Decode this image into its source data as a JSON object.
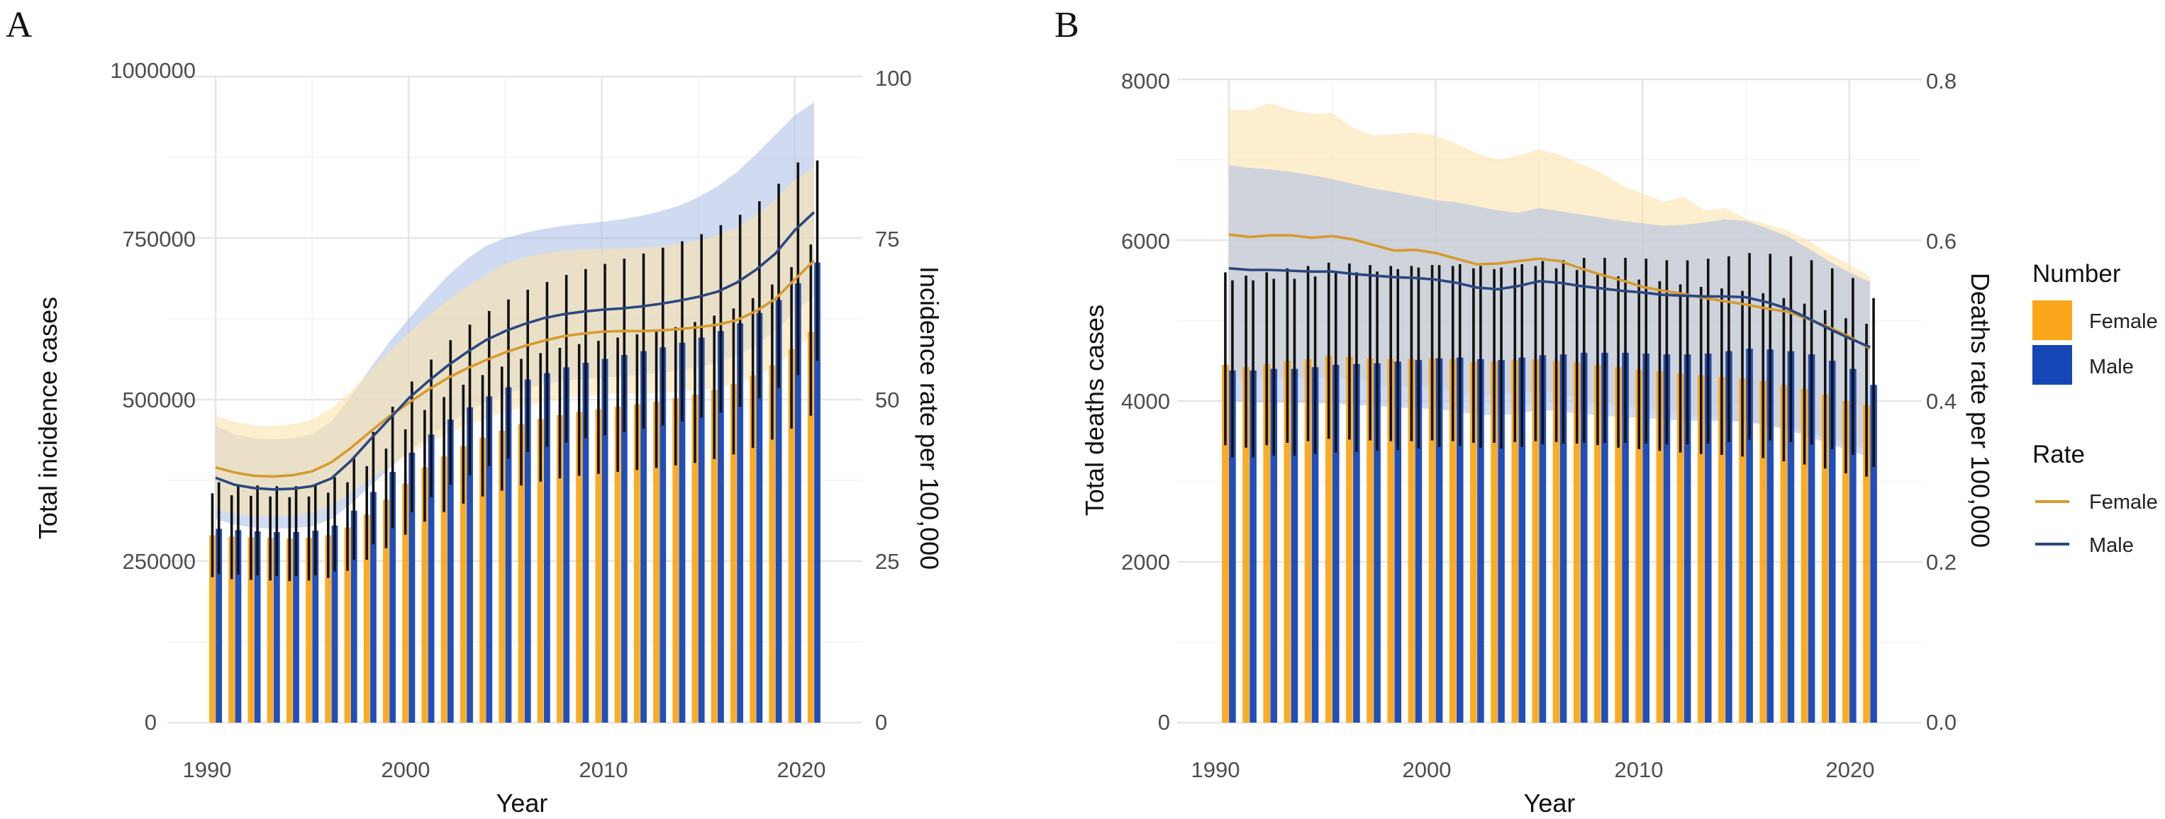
{
  "colors": {
    "female_bar": "#FAA61A",
    "male_bar": "#1546B5",
    "female_line": "#D69A2D",
    "male_line": "#2B4680",
    "female_ribbon": "#FBE3AE",
    "male_ribbon": "#A9BDE6",
    "errorbar": "#111111"
  },
  "legend": {
    "number_title": "Number",
    "rate_title": "Rate",
    "female": "Female",
    "male": "Male"
  },
  "chart_data": [
    {
      "panel": "A",
      "type": "bar",
      "xlabel": "Year",
      "ylabel": "Total incidence cases",
      "ylabel_right": "Incidence rate per 100,000",
      "xlim": [
        1987.5,
        2023.5
      ],
      "ylim": [
        0,
        1000000
      ],
      "ylim_right": [
        0,
        100
      ],
      "x_ticks": [
        "1990",
        "2000",
        "2010",
        "2020"
      ],
      "y_ticks": [
        "0",
        "250000",
        "500000",
        "750000",
        "1000000"
      ],
      "y_ticks_right": [
        "0",
        "25",
        "50",
        "75",
        "100"
      ],
      "years": [
        1990,
        1991,
        1992,
        1993,
        1994,
        1995,
        1996,
        1997,
        1998,
        1999,
        2000,
        2001,
        2002,
        2003,
        2004,
        2005,
        2006,
        2007,
        2008,
        2009,
        2010,
        2011,
        2012,
        2013,
        2014,
        2015,
        2016,
        2017,
        2018,
        2019,
        2020,
        2021
      ],
      "series": [
        {
          "name": "Female",
          "role": "count",
          "values": [
            290000,
            288000,
            287000,
            286000,
            285000,
            286000,
            290000,
            302000,
            322000,
            345000,
            370000,
            395000,
            412000,
            428000,
            441000,
            452000,
            462000,
            470000,
            476000,
            481000,
            485000,
            489000,
            493000,
            497000,
            502000,
            508000,
            515000,
            524000,
            537000,
            553000,
            578000,
            605000
          ],
          "lower": [
            225000,
            222000,
            221000,
            220000,
            219000,
            220000,
            224000,
            235000,
            252000,
            270000,
            291000,
            311000,
            326000,
            339000,
            350000,
            359000,
            367000,
            373000,
            378000,
            382000,
            385000,
            388000,
            391000,
            394000,
            398000,
            402000,
            408000,
            415000,
            425000,
            438000,
            455000,
            475000
          ],
          "upper": [
            355000,
            352000,
            351000,
            350000,
            349000,
            350000,
            356000,
            372000,
            397000,
            424000,
            454000,
            484000,
            504000,
            523000,
            538000,
            551000,
            563000,
            572000,
            580000,
            586000,
            591000,
            596000,
            601000,
            606000,
            612000,
            620000,
            630000,
            641000,
            657000,
            678000,
            705000,
            740000
          ]
        },
        {
          "name": "Male",
          "role": "count",
          "values": [
            300000,
            298000,
            296000,
            295000,
            295000,
            297000,
            305000,
            328000,
            357000,
            388000,
            418000,
            446000,
            469000,
            488000,
            505000,
            519000,
            531000,
            541000,
            550000,
            557000,
            563000,
            569000,
            575000,
            581000,
            588000,
            596000,
            606000,
            618000,
            634000,
            654000,
            680000,
            712000
          ],
          "lower": [
            230000,
            229000,
            228000,
            227000,
            227000,
            228000,
            234000,
            252000,
            276000,
            301000,
            326000,
            349000,
            368000,
            383000,
            397000,
            409000,
            419000,
            427000,
            434000,
            440000,
            445000,
            450000,
            455000,
            460000,
            466000,
            472000,
            480000,
            489000,
            502000,
            518000,
            538000,
            560000
          ],
          "upper": [
            372000,
            369000,
            367000,
            366000,
            366000,
            369000,
            380000,
            411000,
            450000,
            489000,
            528000,
            562000,
            592000,
            616000,
            637000,
            655000,
            670000,
            682000,
            693000,
            702000,
            710000,
            718000,
            726000,
            735000,
            745000,
            756000,
            770000,
            786000,
            807000,
            834000,
            867000,
            870000
          ]
        },
        {
          "name": "Female",
          "role": "rate",
          "values": [
            39.5,
            38.7,
            38.2,
            38.1,
            38.3,
            38.9,
            40.3,
            42.5,
            45.0,
            47.4,
            49.5,
            51.5,
            53.3,
            54.8,
            56.1,
            57.3,
            58.3,
            59.1,
            59.8,
            60.2,
            60.5,
            60.6,
            60.6,
            60.7,
            60.9,
            61.2,
            61.6,
            62.3,
            63.7,
            65.6,
            68.6,
            71.5
          ],
          "lower": [
            33.0,
            32.4,
            32.0,
            31.9,
            32.0,
            32.5,
            33.7,
            35.6,
            37.7,
            39.7,
            41.5,
            43.2,
            44.7,
            46.0,
            47.1,
            48.1,
            48.9,
            49.6,
            50.2,
            50.5,
            50.8,
            50.9,
            50.9,
            51.0,
            51.2,
            51.4,
            51.8,
            52.4,
            53.6,
            55.2,
            57.7,
            60.2
          ],
          "upper": [
            47.5,
            46.6,
            46.0,
            45.9,
            46.2,
            46.9,
            48.6,
            51.3,
            54.4,
            57.5,
            60.3,
            62.9,
            65.3,
            67.4,
            69.3,
            71.0,
            72.0,
            72.6,
            73.0,
            73.2,
            73.3,
            73.4,
            73.5,
            73.7,
            74.1,
            74.6,
            75.4,
            76.6,
            78.5,
            81.0,
            84.0,
            86.0
          ]
        },
        {
          "name": "Male",
          "role": "rate",
          "values": [
            37.9,
            36.8,
            36.3,
            36.1,
            36.2,
            36.6,
            37.8,
            40.5,
            43.8,
            47.0,
            50.2,
            52.8,
            55.2,
            57.3,
            59.2,
            60.6,
            61.7,
            62.6,
            63.2,
            63.6,
            63.9,
            64.1,
            64.4,
            64.8,
            65.3,
            65.9,
            66.7,
            68.1,
            70.1,
            72.6,
            76.2,
            79.0
          ],
          "lower": [
            31.5,
            30.6,
            30.2,
            30.0,
            30.1,
            30.4,
            31.5,
            33.8,
            36.6,
            39.3,
            42.0,
            44.2,
            46.2,
            48.0,
            49.6,
            50.8,
            51.7,
            52.4,
            52.9,
            53.2,
            53.4,
            53.6,
            53.8,
            54.1,
            54.5,
            55.0,
            55.7,
            56.8,
            58.5,
            60.6,
            63.6,
            66.0
          ],
          "upper": [
            46.0,
            44.6,
            44.0,
            43.9,
            44.0,
            44.6,
            46.6,
            50.5,
            54.8,
            58.9,
            62.5,
            65.9,
            69.1,
            71.7,
            73.8,
            75.0,
            75.8,
            76.4,
            76.9,
            77.2,
            77.5,
            77.9,
            78.4,
            79.1,
            80.0,
            81.3,
            83.0,
            85.2,
            88.0,
            91.0,
            94.0,
            96.0
          ]
        }
      ]
    },
    {
      "panel": "B",
      "type": "bar",
      "xlabel": "Year",
      "ylabel": "Total deaths cases",
      "ylabel_right": "Deaths rate per 100,000",
      "xlim": [
        1987.5,
        2023.5
      ],
      "ylim": [
        0,
        8000
      ],
      "ylim_right": [
        0.0,
        0.8
      ],
      "x_ticks": [
        "1990",
        "2000",
        "2010",
        "2020"
      ],
      "y_ticks": [
        "0",
        "2000",
        "4000",
        "6000",
        "8000"
      ],
      "y_ticks_right": [
        "0.0",
        "0.2",
        "0.4",
        "0.6",
        "0.8"
      ],
      "years": [
        1990,
        1991,
        1992,
        1993,
        1994,
        1995,
        1996,
        1997,
        1998,
        1999,
        2000,
        2001,
        2002,
        2003,
        2004,
        2005,
        2006,
        2007,
        2008,
        2009,
        2010,
        2011,
        2012,
        2013,
        2014,
        2015,
        2016,
        2017,
        2018,
        2019,
        2020,
        2021
      ],
      "series": [
        {
          "name": "Female",
          "role": "count",
          "values": [
            4450,
            4420,
            4460,
            4500,
            4520,
            4560,
            4550,
            4530,
            4520,
            4520,
            4530,
            4520,
            4490,
            4490,
            4510,
            4520,
            4500,
            4480,
            4450,
            4420,
            4390,
            4370,
            4340,
            4320,
            4300,
            4280,
            4250,
            4200,
            4150,
            4080,
            4000,
            3950
          ],
          "lower": [
            3450,
            3420,
            3450,
            3480,
            3500,
            3530,
            3520,
            3510,
            3500,
            3500,
            3510,
            3500,
            3480,
            3480,
            3490,
            3500,
            3490,
            3470,
            3450,
            3420,
            3400,
            3380,
            3360,
            3340,
            3330,
            3310,
            3290,
            3250,
            3210,
            3160,
            3100,
            3060
          ],
          "upper": [
            5600,
            5560,
            5600,
            5650,
            5680,
            5720,
            5710,
            5690,
            5680,
            5680,
            5690,
            5680,
            5650,
            5640,
            5660,
            5680,
            5650,
            5630,
            5590,
            5550,
            5510,
            5490,
            5450,
            5420,
            5400,
            5370,
            5340,
            5280,
            5210,
            5130,
            5030,
            4960
          ]
        },
        {
          "name": "Male",
          "role": "count",
          "values": [
            4380,
            4380,
            4400,
            4400,
            4420,
            4450,
            4460,
            4470,
            4490,
            4510,
            4530,
            4540,
            4520,
            4510,
            4540,
            4570,
            4580,
            4600,
            4600,
            4600,
            4590,
            4580,
            4580,
            4590,
            4620,
            4650,
            4640,
            4620,
            4580,
            4500,
            4400,
            4200
          ],
          "lower": [
            3300,
            3300,
            3320,
            3320,
            3340,
            3360,
            3370,
            3380,
            3390,
            3410,
            3430,
            3440,
            3420,
            3410,
            3430,
            3460,
            3470,
            3480,
            3480,
            3480,
            3470,
            3460,
            3460,
            3470,
            3490,
            3520,
            3510,
            3490,
            3460,
            3400,
            3330,
            3180
          ],
          "upper": [
            5500,
            5500,
            5520,
            5520,
            5550,
            5590,
            5600,
            5610,
            5640,
            5660,
            5690,
            5700,
            5680,
            5660,
            5700,
            5740,
            5750,
            5780,
            5780,
            5780,
            5770,
            5750,
            5750,
            5770,
            5800,
            5840,
            5830,
            5800,
            5750,
            5650,
            5530,
            5280
          ]
        },
        {
          "name": "Female",
          "role": "rate",
          "values": [
            0.607,
            0.604,
            0.606,
            0.606,
            0.603,
            0.605,
            0.601,
            0.594,
            0.587,
            0.588,
            0.584,
            0.577,
            0.57,
            0.571,
            0.574,
            0.577,
            0.574,
            0.565,
            0.557,
            0.55,
            0.542,
            0.537,
            0.533,
            0.528,
            0.524,
            0.52,
            0.515,
            0.511,
            0.502,
            0.492,
            0.48,
            0.465
          ],
          "lower": [
            0.43,
            0.428,
            0.43,
            0.43,
            0.428,
            0.43,
            0.427,
            0.422,
            0.418,
            0.419,
            0.416,
            0.411,
            0.407,
            0.408,
            0.41,
            0.412,
            0.41,
            0.404,
            0.399,
            0.394,
            0.389,
            0.386,
            0.383,
            0.38,
            0.377,
            0.374,
            0.371,
            0.368,
            0.362,
            0.355,
            0.347,
            0.337
          ],
          "upper": [
            0.762,
            0.762,
            0.77,
            0.762,
            0.757,
            0.758,
            0.74,
            0.73,
            0.732,
            0.734,
            0.73,
            0.72,
            0.708,
            0.7,
            0.705,
            0.713,
            0.706,
            0.695,
            0.684,
            0.668,
            0.658,
            0.648,
            0.654,
            0.637,
            0.64,
            0.627,
            0.62,
            0.612,
            0.6,
            0.583,
            0.57,
            0.555
          ]
        },
        {
          "name": "Male",
          "role": "rate",
          "values": [
            0.565,
            0.563,
            0.563,
            0.562,
            0.561,
            0.561,
            0.558,
            0.556,
            0.554,
            0.553,
            0.551,
            0.547,
            0.541,
            0.539,
            0.543,
            0.549,
            0.547,
            0.543,
            0.54,
            0.537,
            0.535,
            0.532,
            0.531,
            0.53,
            0.53,
            0.529,
            0.523,
            0.515,
            0.503,
            0.49,
            0.478,
            0.467
          ],
          "lower": [
            0.4,
            0.398,
            0.398,
            0.398,
            0.397,
            0.397,
            0.395,
            0.394,
            0.392,
            0.391,
            0.39,
            0.387,
            0.383,
            0.382,
            0.384,
            0.389,
            0.387,
            0.384,
            0.382,
            0.38,
            0.379,
            0.377,
            0.376,
            0.375,
            0.375,
            0.374,
            0.37,
            0.364,
            0.356,
            0.347,
            0.338,
            0.33
          ],
          "upper": [
            0.693,
            0.69,
            0.688,
            0.685,
            0.681,
            0.676,
            0.67,
            0.664,
            0.66,
            0.655,
            0.65,
            0.647,
            0.642,
            0.637,
            0.634,
            0.64,
            0.636,
            0.632,
            0.628,
            0.624,
            0.621,
            0.618,
            0.619,
            0.622,
            0.626,
            0.624,
            0.615,
            0.605,
            0.59,
            0.574,
            0.56,
            0.548
          ]
        }
      ]
    }
  ],
  "panels": [
    {
      "letter": "A",
      "xlabel": "Year",
      "ylabel": "Total incidence cases",
      "ylabel_right": "Incidence rate per 100,000",
      "x_ticks": [
        "1990",
        "2000",
        "2010",
        "2020"
      ],
      "y_ticks": [
        "0",
        "250000",
        "500000",
        "750000",
        "1000000"
      ],
      "y_ticks_right": [
        "0",
        "25",
        "50",
        "75",
        "100"
      ]
    },
    {
      "letter": "B",
      "xlabel": "Year",
      "ylabel": "Total deaths cases",
      "ylabel_right": "Deaths rate per 100,000",
      "x_ticks": [
        "1990",
        "2000",
        "2010",
        "2020"
      ],
      "y_ticks": [
        "0",
        "2000",
        "4000",
        "6000",
        "8000"
      ],
      "y_ticks_right": [
        "0.0",
        "0.2",
        "0.4",
        "0.6",
        "0.8"
      ]
    }
  ]
}
